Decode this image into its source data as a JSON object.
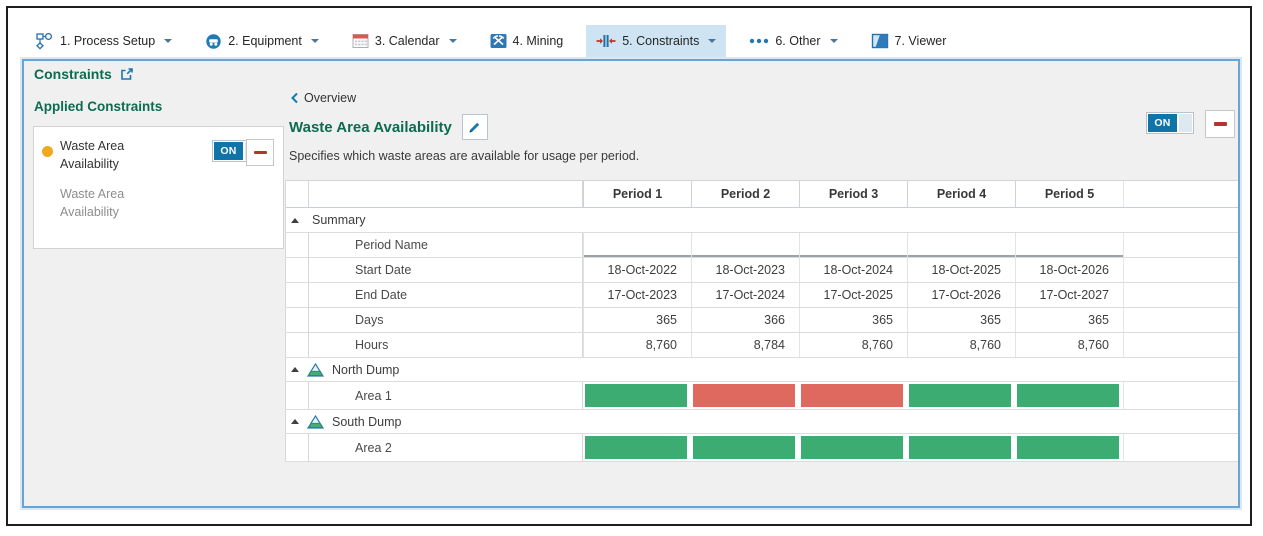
{
  "toolbar": {
    "tabs": [
      {
        "label": "1. Process Setup",
        "icon": "process-setup-icon",
        "dropdown": true,
        "selected": false
      },
      {
        "label": "2. Equipment",
        "icon": "equipment-icon",
        "dropdown": true,
        "selected": false
      },
      {
        "label": "3. Calendar",
        "icon": "calendar-icon",
        "dropdown": true,
        "selected": false
      },
      {
        "label": "4. Mining",
        "icon": "mining-icon",
        "dropdown": false,
        "selected": false
      },
      {
        "label": "5. Constraints",
        "icon": "constraints-icon",
        "dropdown": true,
        "selected": true
      },
      {
        "label": "6. Other",
        "icon": "other-icon",
        "dropdown": true,
        "selected": false
      },
      {
        "label": "7. Viewer",
        "icon": "viewer-icon",
        "dropdown": false,
        "selected": false
      }
    ]
  },
  "sidebar": {
    "title": "Constraints",
    "section_title": "Applied Constraints",
    "card": {
      "name": "Waste Area Availability",
      "subtitle": "Waste Area Availability",
      "toggle_label": "ON",
      "status_dot_color": "#f0a81c"
    }
  },
  "main": {
    "back_link": "Overview",
    "title": "Waste Area Availability",
    "toggle_label": "ON",
    "description": "Specifies which waste areas are available for usage per period."
  },
  "table": {
    "period_headers": [
      "Period 1",
      "Period 2",
      "Period 3",
      "Period 4",
      "Period 5"
    ],
    "summary_label": "Summary",
    "summary_rows": [
      {
        "label": "Period Name",
        "values": [
          "",
          "",
          "",
          "",
          ""
        ],
        "editable": true
      },
      {
        "label": "Start Date",
        "values": [
          "18-Oct-2022",
          "18-Oct-2023",
          "18-Oct-2024",
          "18-Oct-2025",
          "18-Oct-2026"
        ]
      },
      {
        "label": "End Date",
        "values": [
          "17-Oct-2023",
          "17-Oct-2024",
          "17-Oct-2025",
          "17-Oct-2026",
          "17-Oct-2027"
        ]
      },
      {
        "label": "Days",
        "values": [
          "365",
          "366",
          "365",
          "365",
          "365"
        ]
      },
      {
        "label": "Hours",
        "values": [
          "8,760",
          "8,784",
          "8,760",
          "8,760",
          "8,760"
        ]
      }
    ],
    "groups": [
      {
        "label": "North Dump",
        "icon": "dump-icon",
        "areas": [
          {
            "label": "Area 1",
            "availability": [
              true,
              false,
              false,
              true,
              true
            ]
          }
        ]
      },
      {
        "label": "South Dump",
        "icon": "dump-icon",
        "areas": [
          {
            "label": "Area 2",
            "availability": [
              true,
              true,
              true,
              true,
              true
            ]
          }
        ]
      }
    ],
    "colors": {
      "available": "#3cac72",
      "unavailable": "#e0695f"
    }
  },
  "theme_colors": {
    "heading_green": "#0d6b4f",
    "accent_blue": "#1878b4",
    "toggle_blue": "#0f74a8",
    "minus_red": "#b5342e",
    "selected_tab_bg": "#cfe4f2",
    "panel_border_blue": "#68a4d6"
  }
}
